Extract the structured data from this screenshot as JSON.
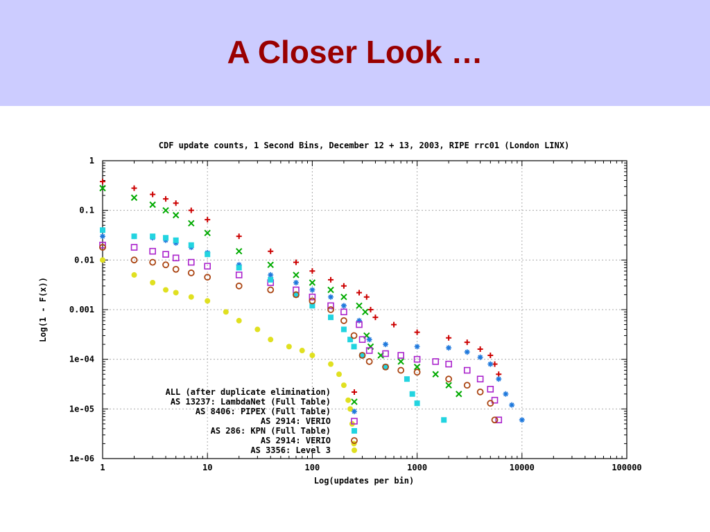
{
  "slide": {
    "title": "A Closer Look …"
  },
  "chart_data": {
    "type": "scatter",
    "title": "CDF update counts, 1 Second Bins, December 12 + 13, 2003,  RIPE rrc01 (London LINX)",
    "xlabel": "Log(updates per bin)",
    "ylabel": "Log(1 - F(x))",
    "x_scale": "log",
    "y_scale": "log",
    "xlim": [
      1,
      100000
    ],
    "ylim": [
      1e-06,
      1
    ],
    "x_ticks": [
      1,
      10,
      100,
      1000,
      10000,
      100000
    ],
    "x_tick_labels": [
      "1",
      "10",
      "100",
      "1000",
      "10000",
      "100000"
    ],
    "y_ticks": [
      1,
      0.1,
      0.01,
      0.001,
      0.0001,
      1e-05,
      1e-06
    ],
    "y_tick_labels": [
      "1",
      "0.1",
      "0.01",
      "0.001",
      "1e-04",
      "1e-05",
      "1e-06"
    ],
    "grid": true,
    "legend_position": "bottom-left",
    "series": [
      {
        "name": "ALL (after duplicate elimination)",
        "color": "#cc0000",
        "marker": "plus",
        "points": [
          [
            1,
            0.38
          ],
          [
            2,
            0.28
          ],
          [
            3,
            0.21
          ],
          [
            4,
            0.17
          ],
          [
            5,
            0.14
          ],
          [
            7,
            0.1
          ],
          [
            10,
            0.065
          ],
          [
            20,
            0.03
          ],
          [
            40,
            0.015
          ],
          [
            70,
            0.009
          ],
          [
            100,
            0.006
          ],
          [
            150,
            0.004
          ],
          [
            200,
            0.003
          ],
          [
            280,
            0.0022
          ],
          [
            330,
            0.0018
          ],
          [
            360,
            0.001
          ],
          [
            400,
            0.0007
          ],
          [
            600,
            0.0005
          ],
          [
            1000,
            0.00035
          ],
          [
            2000,
            0.00027
          ],
          [
            3000,
            0.00022
          ],
          [
            4000,
            0.00016
          ],
          [
            5000,
            0.00012
          ],
          [
            5500,
            8e-05
          ],
          [
            6000,
            5e-05
          ]
        ]
      },
      {
        "name": "AS 13237: LambdaNet (Full Table)",
        "color": "#00aa00",
        "marker": "x",
        "points": [
          [
            1,
            0.28
          ],
          [
            2,
            0.18
          ],
          [
            3,
            0.13
          ],
          [
            4,
            0.1
          ],
          [
            5,
            0.08
          ],
          [
            7,
            0.055
          ],
          [
            10,
            0.035
          ],
          [
            20,
            0.015
          ],
          [
            40,
            0.008
          ],
          [
            70,
            0.005
          ],
          [
            100,
            0.0035
          ],
          [
            150,
            0.0025
          ],
          [
            200,
            0.0018
          ],
          [
            280,
            0.0012
          ],
          [
            320,
            0.0009
          ],
          [
            330,
            0.0003
          ],
          [
            360,
            0.00018
          ],
          [
            450,
            0.00012
          ],
          [
            700,
            9e-05
          ],
          [
            1000,
            7e-05
          ],
          [
            1500,
            5e-05
          ],
          [
            2000,
            3e-05
          ],
          [
            2500,
            2e-05
          ]
        ]
      },
      {
        "name": "AS 8406: PIPEX (Full Table)",
        "color": "#1e78dc",
        "marker": "asterisk",
        "points": [
          [
            1,
            0.03
          ],
          [
            2,
            0.03
          ],
          [
            3,
            0.028
          ],
          [
            4,
            0.025
          ],
          [
            5,
            0.022
          ],
          [
            7,
            0.018
          ],
          [
            10,
            0.014
          ],
          [
            20,
            0.008
          ],
          [
            40,
            0.005
          ],
          [
            70,
            0.0035
          ],
          [
            100,
            0.0025
          ],
          [
            150,
            0.0018
          ],
          [
            200,
            0.0012
          ],
          [
            280,
            0.0006
          ],
          [
            350,
            0.00025
          ],
          [
            500,
            0.0002
          ],
          [
            1000,
            0.00018
          ],
          [
            2000,
            0.00017
          ],
          [
            3000,
            0.00014
          ],
          [
            4000,
            0.00011
          ],
          [
            5000,
            8e-05
          ],
          [
            6000,
            4e-05
          ],
          [
            7000,
            2e-05
          ],
          [
            8000,
            1.2e-05
          ],
          [
            10000,
            6e-06
          ]
        ]
      },
      {
        "name": "AS 2914: VERIO",
        "color": "#aa22cc",
        "marker": "square",
        "points": [
          [
            1,
            0.02
          ],
          [
            2,
            0.018
          ],
          [
            3,
            0.015
          ],
          [
            4,
            0.013
          ],
          [
            5,
            0.011
          ],
          [
            7,
            0.009
          ],
          [
            10,
            0.0075
          ],
          [
            20,
            0.005
          ],
          [
            40,
            0.0035
          ],
          [
            70,
            0.0025
          ],
          [
            100,
            0.0018
          ],
          [
            150,
            0.0012
          ],
          [
            200,
            0.0009
          ],
          [
            280,
            0.0005
          ],
          [
            300,
            0.00025
          ],
          [
            350,
            0.00015
          ],
          [
            500,
            0.00013
          ],
          [
            700,
            0.00012
          ],
          [
            1000,
            0.0001
          ],
          [
            1500,
            9e-05
          ],
          [
            2000,
            8e-05
          ],
          [
            3000,
            6e-05
          ],
          [
            4000,
            4e-05
          ],
          [
            5000,
            2.5e-05
          ],
          [
            5500,
            1.5e-05
          ],
          [
            6000,
            6e-06
          ]
        ]
      },
      {
        "name": "AS 286: KPN (Full Table)",
        "color": "#22d4e0",
        "marker": "filled-square",
        "points": [
          [
            1,
            0.04
          ],
          [
            2,
            0.03
          ],
          [
            3,
            0.03
          ],
          [
            4,
            0.028
          ],
          [
            5,
            0.025
          ],
          [
            7,
            0.02
          ],
          [
            10,
            0.013
          ],
          [
            20,
            0.007
          ],
          [
            40,
            0.004
          ],
          [
            70,
            0.002
          ],
          [
            100,
            0.0012
          ],
          [
            150,
            0.0007
          ],
          [
            200,
            0.0004
          ],
          [
            230,
            0.00025
          ],
          [
            250,
            0.00018
          ],
          [
            300,
            0.00012
          ],
          [
            500,
            7e-05
          ],
          [
            800,
            4e-05
          ],
          [
            900,
            2e-05
          ],
          [
            1000,
            1.3e-05
          ],
          [
            1800,
            6e-06
          ]
        ]
      },
      {
        "name": "AS 2914: VERIO",
        "color": "#aa4411",
        "marker": "circle",
        "points": [
          [
            1,
            0.018
          ],
          [
            2,
            0.01
          ],
          [
            3,
            0.009
          ],
          [
            4,
            0.008
          ],
          [
            5,
            0.0065
          ],
          [
            7,
            0.0055
          ],
          [
            10,
            0.0045
          ],
          [
            20,
            0.003
          ],
          [
            40,
            0.0025
          ],
          [
            70,
            0.002
          ],
          [
            100,
            0.0015
          ],
          [
            150,
            0.001
          ],
          [
            200,
            0.0006
          ],
          [
            250,
            0.0003
          ],
          [
            300,
            0.00012
          ],
          [
            350,
            9e-05
          ],
          [
            500,
            7e-05
          ],
          [
            700,
            6e-05
          ],
          [
            1000,
            5.5e-05
          ],
          [
            2000,
            4e-05
          ],
          [
            3000,
            3e-05
          ],
          [
            4000,
            2.2e-05
          ],
          [
            5000,
            1.3e-05
          ],
          [
            5500,
            6e-06
          ]
        ]
      },
      {
        "name": "AS 3356: Level 3",
        "color": "#e0e020",
        "marker": "filled-circle",
        "points": [
          [
            1,
            0.01
          ],
          [
            2,
            0.005
          ],
          [
            3,
            0.0035
          ],
          [
            4,
            0.0025
          ],
          [
            5,
            0.0022
          ],
          [
            7,
            0.0018
          ],
          [
            10,
            0.0015
          ],
          [
            15,
            0.0009
          ],
          [
            20,
            0.0006
          ],
          [
            30,
            0.0004
          ],
          [
            40,
            0.00025
          ],
          [
            60,
            0.00018
          ],
          [
            80,
            0.00015
          ],
          [
            100,
            0.00012
          ],
          [
            150,
            8e-05
          ],
          [
            180,
            5e-05
          ],
          [
            200,
            3e-05
          ],
          [
            220,
            1.5e-05
          ],
          [
            230,
            1e-05
          ],
          [
            240,
            5e-06
          ],
          [
            250,
            2e-06
          ]
        ]
      }
    ]
  }
}
